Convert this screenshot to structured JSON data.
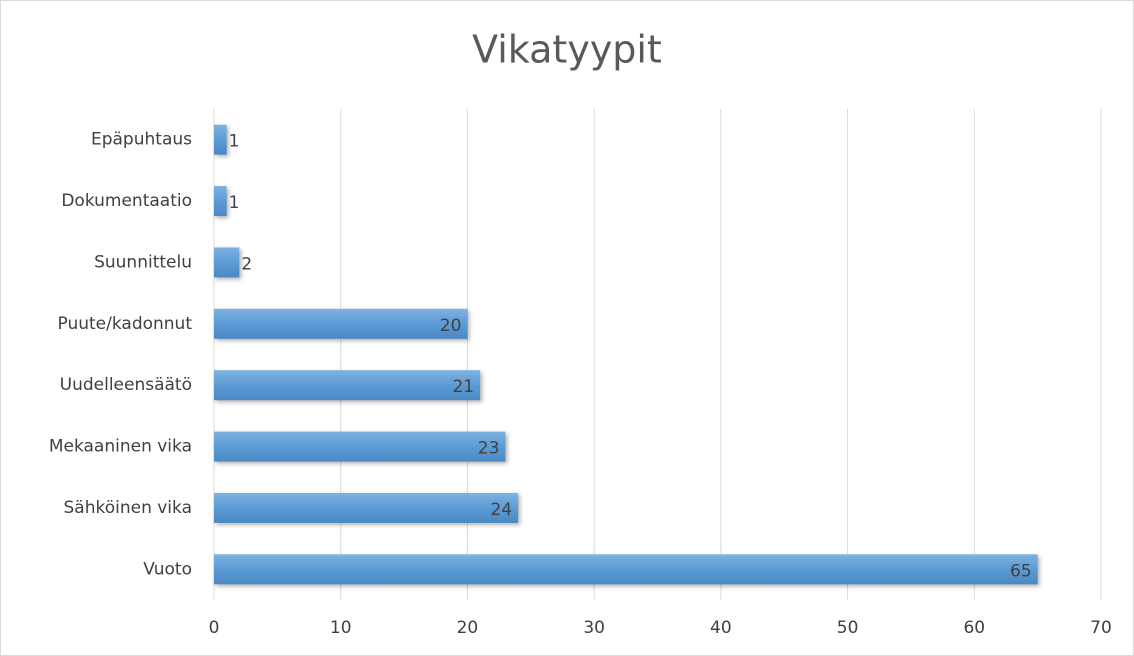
{
  "chart_data": {
    "type": "bar",
    "orientation": "horizontal",
    "title": "Vikatyypit",
    "categories": [
      "Epäpuhtaus",
      "Dokumentaatio",
      "Suunnittelu",
      "Puute/kadonnut",
      "Uudelleensäätö",
      "Mekaaninen vika",
      "Sähköinen vika",
      "Vuoto"
    ],
    "values": [
      1,
      1,
      2,
      20,
      21,
      23,
      24,
      65
    ],
    "color": "#5b9bd5",
    "xlim": [
      0,
      70
    ],
    "xticks": [
      0,
      10,
      20,
      30,
      40,
      50,
      60,
      70
    ],
    "grid": true
  }
}
